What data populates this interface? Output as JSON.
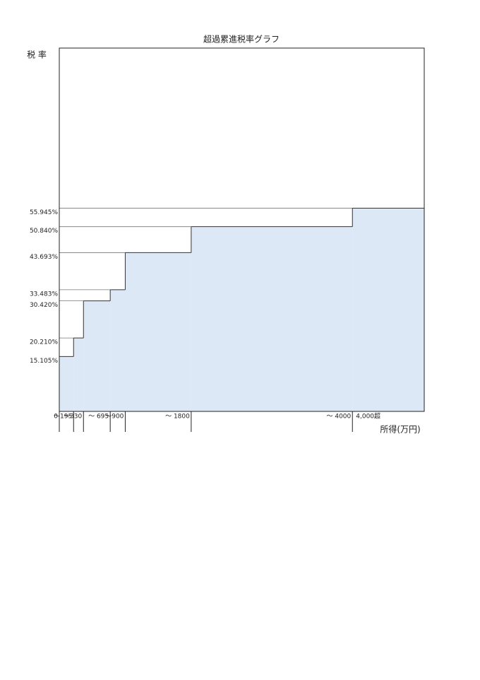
{
  "chart_data": {
    "type": "step-area",
    "title": "超過累進税率グラフ",
    "y_label": "税 率",
    "x_label": "所得(万円)",
    "color": "#dce8f5",
    "x": [
      0,
      195,
      330,
      695,
      900,
      1800,
      4000
    ],
    "values": [
      15.105,
      20.21,
      30.42,
      33.483,
      43.693,
      50.84,
      55.945
    ],
    "xlim": [
      0,
      4980
    ],
    "ylim": [
      0,
      100
    ],
    "xticks": [
      0,
      {
        "value": 195,
        "label": "～195"
      },
      {
        "value": 330,
        "label": "～330"
      },
      {
        "value": 695,
        "label": "～ 695"
      },
      {
        "value": 900,
        "label": "～900"
      },
      {
        "value": 1800,
        "label": "～ 1800"
      },
      {
        "value": 4000,
        "label": "～ 4000"
      }
    ],
    "last_segment_label": "4,000超",
    "yticks": [
      {
        "value": 15.105,
        "label": "15.105%"
      },
      {
        "value": 20.21,
        "label": "20.210%"
      },
      {
        "value": 30.42,
        "label": "30.420%"
      },
      {
        "value": 33.483,
        "label": "33.483%"
      },
      {
        "value": 43.693,
        "label": "43.693%"
      },
      {
        "value": 50.84,
        "label": "50.840%"
      },
      {
        "value": 55.945,
        "label": "55.945%"
      }
    ]
  }
}
